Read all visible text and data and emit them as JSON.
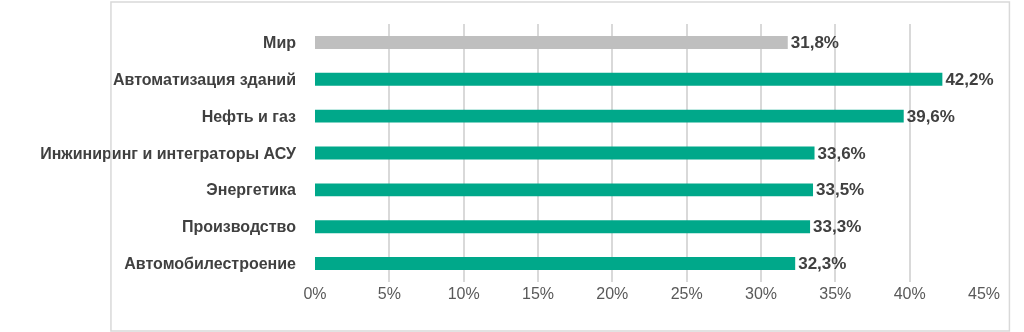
{
  "chart_data": {
    "type": "bar",
    "orientation": "horizontal",
    "categories": [
      "Мир",
      "Автоматизация зданий",
      "Нефть и газ",
      "Инжиниринг и интеграторы АСУ",
      "Энергетика",
      "Производство",
      "Автомобилестроение"
    ],
    "values": [
      31.8,
      42.2,
      39.6,
      33.6,
      33.5,
      33.3,
      32.3
    ],
    "colors": [
      "#bfbfbf",
      "#00a88a",
      "#00a88a",
      "#00a88a",
      "#00a88a",
      "#00a88a",
      "#00a88a"
    ],
    "value_labels": [
      "31,8%",
      "42,2%",
      "39,6%",
      "33,6%",
      "33,5%",
      "33,3%",
      "32,3%"
    ],
    "xlim": [
      0,
      45
    ],
    "xticks": [
      {
        "value": 0,
        "label": "0%"
      },
      {
        "value": 5,
        "label": "5%"
      },
      {
        "value": 10,
        "label": "10%"
      },
      {
        "value": 15,
        "label": "15%"
      },
      {
        "value": 20,
        "label": "20%"
      },
      {
        "value": 25,
        "label": "25%"
      },
      {
        "value": 30,
        "label": "30%"
      },
      {
        "value": 35,
        "label": "35%"
      },
      {
        "value": 40,
        "label": "40%"
      },
      {
        "value": 45,
        "label": "45%"
      }
    ],
    "grid": "x"
  }
}
